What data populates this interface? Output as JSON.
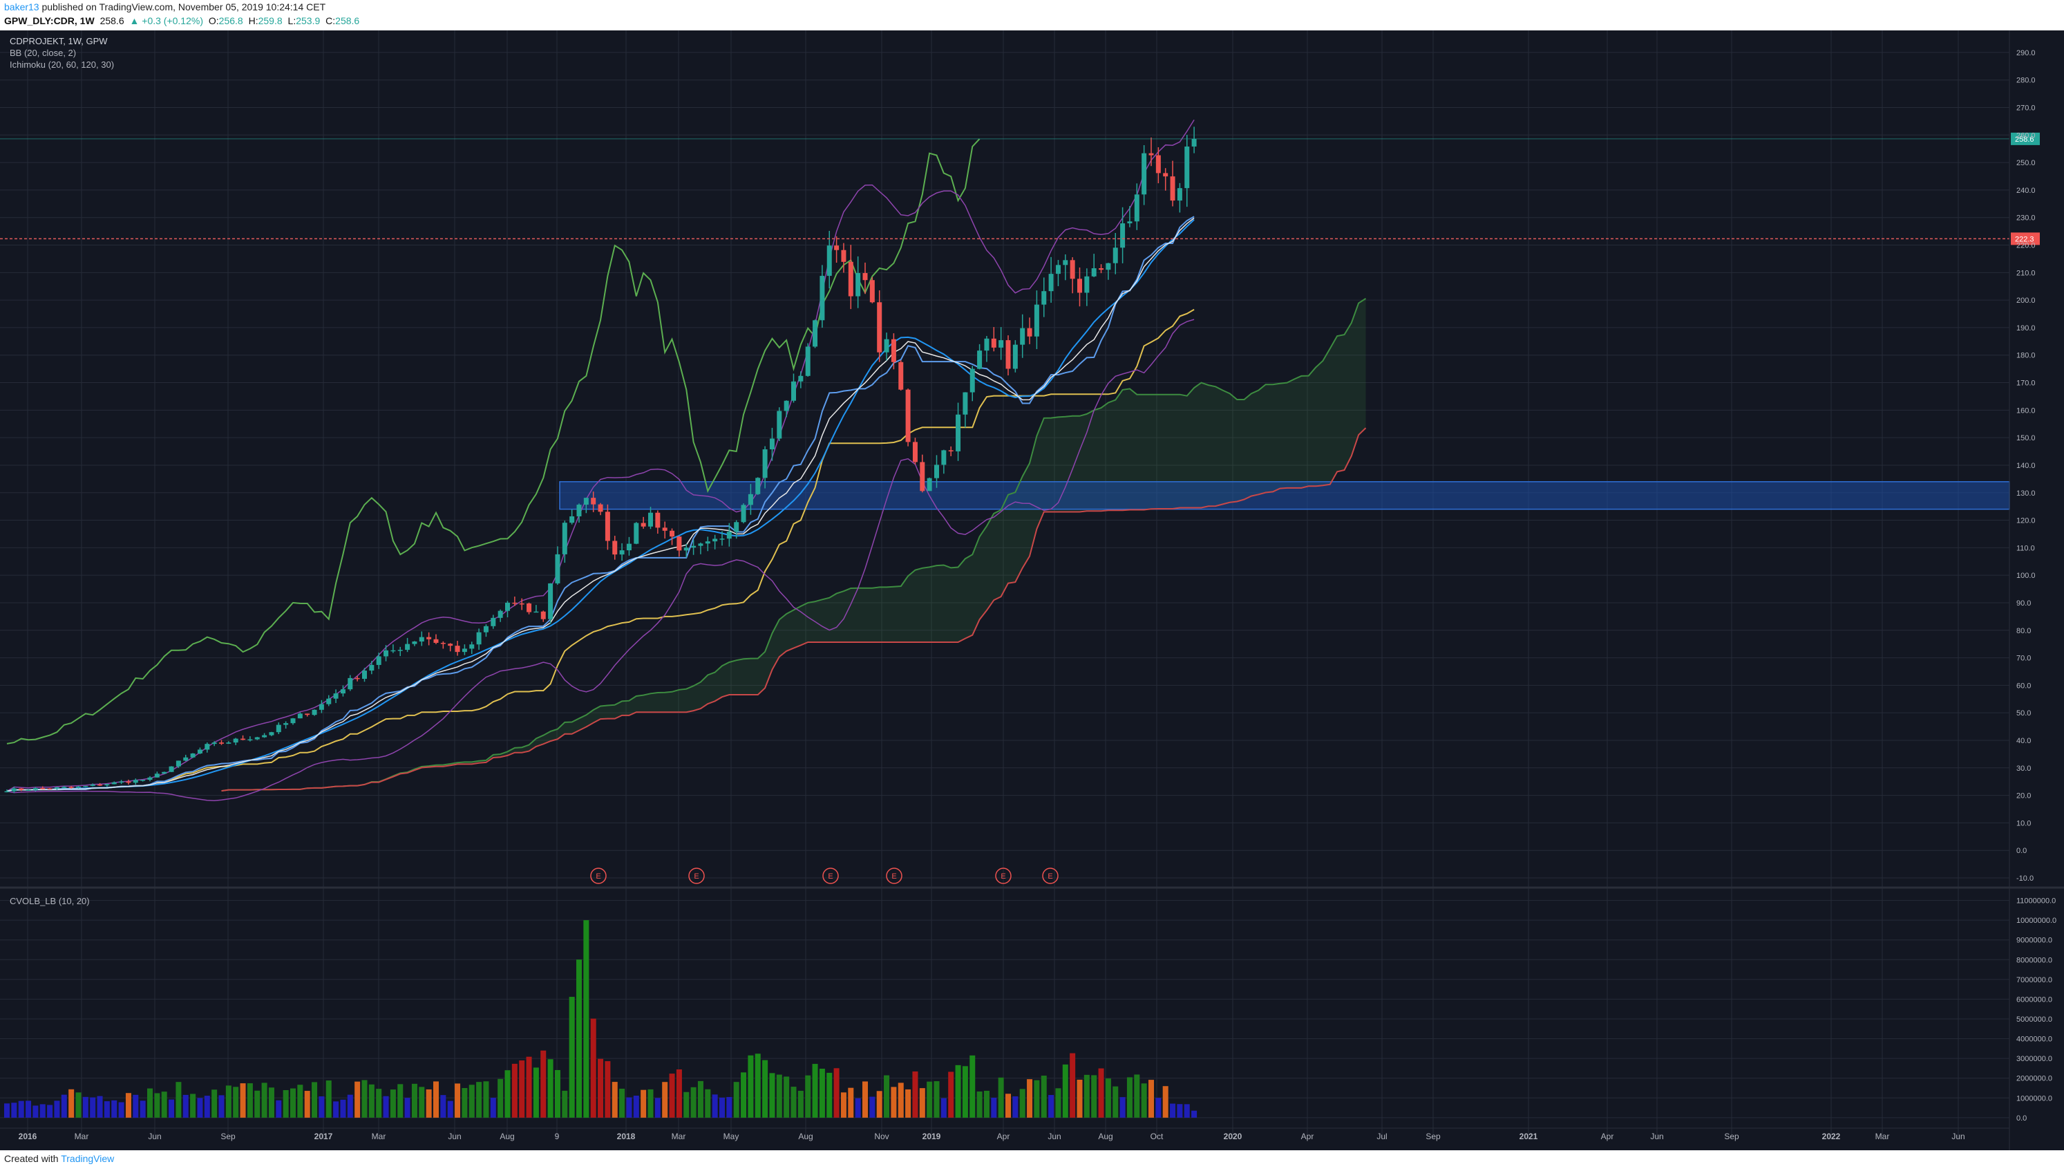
{
  "header": {
    "user": "baker13",
    "published": "published on TradingView.com, November 05, 2019 10:24:14 CET",
    "symbol": "GPW_DLY:CDR, 1W",
    "last": "258.6",
    "change": "▲ +0.3 (+0.12%)",
    "o_label": "O:",
    "o": "256.8",
    "h_label": "H:",
    "h": "259.8",
    "l_label": "L:",
    "l": "253.9",
    "c_label": "C:",
    "c": "258.6"
  },
  "legend": {
    "symbol": "CDPROJEKT, 1W, GPW",
    "bb": "BB (20, close, 2)",
    "ichimoku": "Ichimoku (20, 60, 120, 30)",
    "volume": "CVOLB_LB (10, 20)"
  },
  "footer": {
    "created": "Created with",
    "brand": "TradingView"
  },
  "colors": {
    "background": "#131722",
    "grid": "#262b38",
    "text": "#b2b5be",
    "up": "#26a69a",
    "down": "#ef5350",
    "zone": "#1e4fa8",
    "lagging": "#5caf50",
    "spanA": "#3d8c40",
    "spanB": "#c94848",
    "tenkan": "#5d9cec",
    "kijun": "#e0c050",
    "bb_upper": "#8e44ad",
    "bb_mid": "#e8e8e8",
    "bb_basis": "#2196f3",
    "hline": "#e05a5a"
  },
  "chart_data": {
    "type": "candlestick",
    "x_axis_labels": [
      "2016",
      "Mar",
      "Jun",
      "Sep",
      "2017",
      "Mar",
      "Jun",
      "Aug",
      "9",
      "2018",
      "Mar",
      "May",
      "Aug",
      "Nov",
      "2019",
      "Apr",
      "Jun",
      "Aug",
      "Oct",
      "2020",
      "Apr",
      "Jul",
      "Sep",
      "2021",
      "Apr",
      "Jun",
      "Sep",
      "2022",
      "Mar",
      "Jun"
    ],
    "y_ticks": [
      "290.0",
      "280.0",
      "270.0",
      "260.0",
      "250.0",
      "240.0",
      "230.0",
      "220.0",
      "210.0",
      "200.0",
      "190.0",
      "180.0",
      "170.0",
      "160.0",
      "150.0",
      "140.0",
      "130.0",
      "120.0",
      "110.0",
      "100.0",
      "90.0",
      "80.0",
      "70.0",
      "60.0",
      "50.0",
      "40.0",
      "30.0",
      "20.0",
      "10.0",
      "0.0",
      "-10.0"
    ],
    "ylim": [
      -10,
      295
    ],
    "last_price_label": "258.6",
    "horizontal_line": {
      "value": 222.3,
      "label": "222.3"
    },
    "support_zone": {
      "from": 124,
      "to": 134
    },
    "earnings_markers": [
      "E",
      "E",
      "E",
      "E",
      "E",
      "E"
    ],
    "price_anchors": [
      [
        0,
        22
      ],
      [
        10,
        23
      ],
      [
        20,
        26
      ],
      [
        28,
        38
      ],
      [
        36,
        42
      ],
      [
        44,
        53
      ],
      [
        52,
        70
      ],
      [
        58,
        78
      ],
      [
        64,
        72
      ],
      [
        70,
        90
      ],
      [
        75,
        85
      ],
      [
        78,
        120
      ],
      [
        82,
        128
      ],
      [
        85,
        108
      ],
      [
        90,
        122
      ],
      [
        95,
        108
      ],
      [
        100,
        112
      ],
      [
        104,
        132
      ],
      [
        108,
        158
      ],
      [
        112,
        180
      ],
      [
        114,
        210
      ],
      [
        116,
        222
      ],
      [
        118,
        206
      ],
      [
        120,
        206
      ],
      [
        122,
        185
      ],
      [
        124,
        180
      ],
      [
        126,
        148
      ],
      [
        128,
        132
      ],
      [
        130,
        142
      ],
      [
        132,
        148
      ],
      [
        134,
        165
      ],
      [
        137,
        190
      ],
      [
        140,
        178
      ],
      [
        144,
        195
      ],
      [
        146,
        205
      ],
      [
        148,
        212
      ],
      [
        150,
        205
      ],
      [
        152,
        208
      ],
      [
        155,
        220
      ],
      [
        157,
        228
      ],
      [
        159,
        252
      ],
      [
        161,
        248
      ],
      [
        163,
        237
      ],
      [
        164,
        244
      ],
      [
        165,
        258
      ]
    ],
    "volume": {
      "y_ticks": [
        "11000000.0",
        "10000000.0",
        "9000000.0",
        "8000000.0",
        "7000000.0",
        "6000000.0",
        "5000000.0",
        "4000000.0",
        "3000000.0",
        "2000000.0",
        "1000000.0",
        "0.0"
      ],
      "ylim": [
        -600000,
        11300000
      ],
      "anchors": [
        [
          0,
          0.7
        ],
        [
          10,
          1.2
        ],
        [
          20,
          1.4
        ],
        [
          30,
          1.6
        ],
        [
          40,
          1.3
        ],
        [
          50,
          1.5
        ],
        [
          60,
          1.4
        ],
        [
          70,
          1.8
        ],
        [
          74,
          3.5
        ],
        [
          78,
          2.4
        ],
        [
          81,
          10.0
        ],
        [
          83,
          2.6
        ],
        [
          86,
          1.4
        ],
        [
          90,
          1.6
        ],
        [
          95,
          2.1
        ],
        [
          100,
          1.3
        ],
        [
          105,
          3.4
        ],
        [
          110,
          1.2
        ],
        [
          115,
          2.6
        ],
        [
          120,
          1.5
        ],
        [
          125,
          2.3
        ],
        [
          130,
          1.6
        ],
        [
          135,
          2.4
        ],
        [
          140,
          1.3
        ],
        [
          145,
          1.8
        ],
        [
          150,
          3.1
        ],
        [
          155,
          1.5
        ],
        [
          160,
          1.7
        ],
        [
          166,
          0.4
        ]
      ]
    },
    "ichimoku_end": {
      "spanA": 212,
      "spanB": 171
    }
  }
}
